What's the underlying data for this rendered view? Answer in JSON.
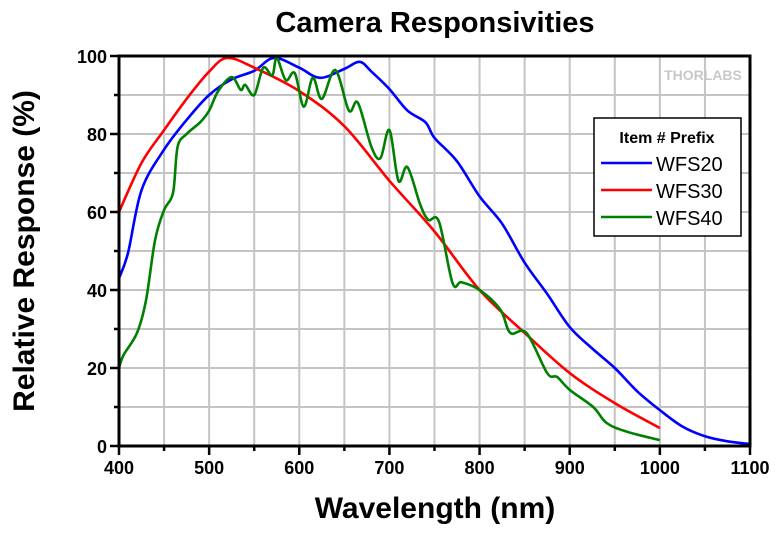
{
  "chart_data": {
    "type": "line",
    "title": "Camera Responsivities",
    "xlabel": "Wavelength (nm)",
    "ylabel": "Relative Response (%)",
    "xlim": [
      400,
      1100
    ],
    "ylim": [
      0,
      100
    ],
    "xticks": [
      400,
      500,
      600,
      700,
      800,
      900,
      1000,
      1100
    ],
    "yticks": [
      0,
      20,
      40,
      60,
      80,
      100
    ],
    "grid": true,
    "legend": {
      "title": "Item # Prefix",
      "placement": "right"
    },
    "watermark": "THORLABS",
    "series": [
      {
        "name": "WFS20",
        "color": "#0000ff",
        "x": [
          400,
          410,
          425,
          450,
          475,
          500,
          525,
          550,
          572,
          600,
          623,
          650,
          667,
          680,
          700,
          720,
          740,
          750,
          775,
          800,
          825,
          850,
          875,
          900,
          925,
          950,
          975,
          1000,
          1025,
          1050,
          1075,
          1100
        ],
        "y": [
          43,
          49.5,
          65.6,
          76,
          83.6,
          90,
          94,
          96.2,
          99.5,
          97,
          94.4,
          96.7,
          98.5,
          96,
          91.5,
          86,
          83,
          79,
          73,
          64,
          57,
          47,
          39,
          30.5,
          25,
          20,
          14,
          9.2,
          5,
          2.5,
          1.2,
          0.5
        ]
      },
      {
        "name": "WFS30",
        "color": "#ff0000",
        "x": [
          400,
          425,
          450,
          475,
          500,
          520,
          550,
          600,
          650,
          700,
          750,
          800,
          850,
          900,
          950,
          1000
        ],
        "y": [
          60,
          72.6,
          81,
          89,
          96,
          99.5,
          97,
          91,
          82,
          68,
          55,
          40,
          29,
          18.7,
          11,
          4.6
        ]
      },
      {
        "name": "WFS40",
        "color": "#008000",
        "x": [
          400,
          405,
          420,
          430,
          440,
          450,
          460,
          465,
          475,
          490,
          500,
          510,
          525,
          535,
          540,
          550,
          560,
          570,
          575,
          585,
          595,
          605,
          615,
          625,
          640,
          655,
          665,
          680,
          690,
          700,
          710,
          720,
          734,
          743,
          755,
          770,
          780,
          800,
          823,
          834,
          852,
          875,
          886,
          900,
          926,
          941,
          963,
          1000
        ],
        "y": [
          20,
          23.3,
          29,
          37.4,
          52.8,
          60.5,
          65,
          76.7,
          80,
          83,
          86,
          91,
          94.6,
          91.3,
          92.6,
          90,
          97,
          95,
          99.5,
          93.8,
          95.6,
          87,
          94.4,
          89,
          96.4,
          86,
          88,
          76.7,
          73.8,
          81,
          68,
          71.5,
          62,
          58,
          57.5,
          41.8,
          42,
          40,
          35,
          29,
          29,
          18.7,
          17.7,
          14.4,
          10,
          5.9,
          3.7,
          1.5
        ]
      }
    ]
  }
}
